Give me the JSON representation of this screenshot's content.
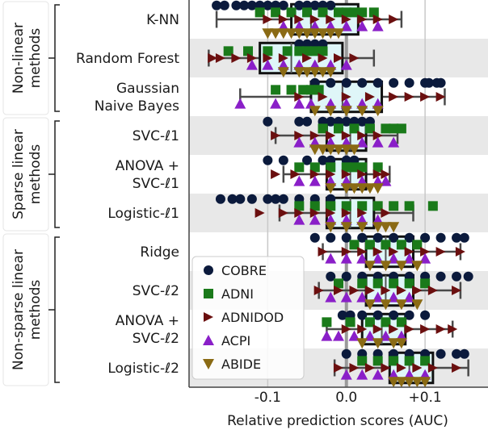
{
  "chart_data": {
    "type": "scatter",
    "xlabel": "Relative prediction scores (AUC)",
    "xlim": [
      -0.2,
      0.18
    ],
    "x_ticks": [
      {
        "value": -0.1,
        "label": "-0.1"
      },
      {
        "value": 0.0,
        "label": "0.0"
      },
      {
        "value": 0.1,
        "label": "+0.1"
      }
    ],
    "groups": [
      {
        "label": "Non-linear methods",
        "lines": [
          "Non-linear",
          "methods"
        ],
        "rows": [
          0,
          2
        ]
      },
      {
        "label": "Sparse linear methods",
        "lines": [
          "Sparse linear",
          "methods"
        ],
        "rows": [
          3,
          5
        ]
      },
      {
        "label": "Non-sparse linear methods",
        "lines": [
          "Non-sparse linear",
          "methods"
        ],
        "rows": [
          6,
          9
        ]
      }
    ],
    "methods": [
      {
        "lines": [
          "K-NN"
        ],
        "box": [
          -0.07,
          -0.045,
          0.015
        ],
        "whiskers": [
          -0.165,
          0.07
        ]
      },
      {
        "lines": [
          "Random Forest"
        ],
        "box": [
          -0.11,
          -0.07,
          -0.005
        ],
        "whiskers": [
          -0.175,
          0.035
        ]
      },
      {
        "lines": [
          "Gaussian",
          "Naive Bayes"
        ],
        "box": [
          -0.045,
          -0.005,
          0.045
        ],
        "whiskers": [
          -0.135,
          0.125
        ]
      },
      {
        "lines": [
          "SVC-ℓ1"
        ],
        "box": [
          -0.025,
          0.005,
          0.025
        ],
        "whiskers": [
          -0.09,
          0.065
        ]
      },
      {
        "lines": [
          "ANOVA +",
          "SVC-ℓ1"
        ],
        "box": [
          -0.025,
          0.005,
          0.025
        ],
        "whiskers": [
          -0.08,
          0.055
        ]
      },
      {
        "lines": [
          "Logistic-ℓ1"
        ],
        "box": [
          -0.025,
          0.005,
          0.035
        ],
        "whiskers": [
          -0.085,
          0.085
        ]
      },
      {
        "lines": [
          "Ridge"
        ],
        "box": [
          0.025,
          0.05,
          0.085
        ],
        "whiskers": [
          -0.03,
          0.145
        ]
      },
      {
        "lines": [
          "SVC-ℓ2"
        ],
        "box": [
          0.025,
          0.05,
          0.085
        ],
        "whiskers": [
          -0.035,
          0.145
        ]
      },
      {
        "lines": [
          "ANOVA +",
          "SVC-ℓ2"
        ],
        "box": [
          0.02,
          0.045,
          0.075
        ],
        "whiskers": [
          -0.025,
          0.135
        ]
      },
      {
        "lines": [
          "Logistic-ℓ2"
        ],
        "box": [
          0.055,
          0.08,
          0.11
        ],
        "whiskers": [
          -0.015,
          0.155
        ]
      }
    ],
    "series": [
      {
        "name": "COBRE",
        "marker": "circle",
        "color": "#0b1a3c",
        "x": [
          [
            -0.165,
            -0.155,
            -0.14,
            -0.13,
            -0.12,
            -0.11,
            -0.1,
            -0.09,
            -0.08,
            -0.06,
            -0.05,
            -0.04,
            -0.03,
            -0.02
          ],
          [
            -0.06,
            -0.05,
            -0.04,
            -0.03
          ],
          [
            -0.04,
            -0.02,
            0.0,
            0.02,
            0.04,
            0.06,
            0.08,
            0.1,
            0.105,
            0.115,
            0.12
          ],
          [
            -0.1,
            -0.06,
            -0.05,
            -0.03,
            -0.02,
            -0.01,
            0.0,
            0.01,
            0.02,
            0.03
          ],
          [
            -0.1,
            -0.08,
            -0.05,
            -0.03,
            -0.02,
            0.0,
            0.01
          ],
          [
            -0.16,
            -0.145,
            -0.135,
            -0.12,
            -0.1,
            -0.09,
            -0.08,
            -0.06,
            -0.04,
            -0.02
          ],
          [
            -0.04,
            -0.02,
            0.0,
            0.02,
            0.04,
            0.06,
            0.08,
            0.1,
            0.12,
            0.14,
            0.15
          ],
          [
            -0.02,
            0.0,
            0.02,
            0.04,
            0.06,
            0.08,
            0.1,
            0.12,
            0.14,
            0.155
          ],
          [
            -0.005,
            0.005,
            0.02,
            0.04,
            0.06,
            0.08,
            0.1
          ],
          [
            0.0,
            0.02,
            0.04,
            0.06,
            0.08,
            0.1,
            0.12,
            0.14,
            0.15
          ]
        ]
      },
      {
        "name": "ADNI",
        "marker": "square",
        "color": "#1a7a1a",
        "x": [
          [
            -0.11,
            -0.09,
            -0.07,
            -0.05,
            -0.03,
            -0.01,
            0.0,
            0.01,
            0.02,
            0.035
          ],
          [
            -0.15,
            -0.125,
            -0.1,
            -0.075,
            -0.06,
            -0.05,
            -0.04,
            -0.03
          ],
          [
            -0.09,
            -0.07,
            -0.055,
            -0.045,
            -0.04,
            -0.035
          ],
          [
            -0.03,
            -0.01,
            0.01,
            0.03,
            0.05,
            0.06,
            0.07
          ],
          [
            -0.06,
            -0.04,
            -0.02,
            0.0,
            0.01,
            0.02,
            0.04
          ],
          [
            -0.06,
            -0.04,
            -0.02,
            0.0,
            0.02,
            0.04,
            0.06,
            0.08,
            0.11
          ],
          [
            0.01,
            0.03,
            0.05,
            0.07,
            0.09
          ],
          [
            -0.01,
            0.02,
            0.04,
            0.06,
            0.08,
            0.1
          ],
          [
            -0.025,
            0.005,
            0.03,
            0.05,
            0.07
          ],
          [
            0.02,
            0.04,
            0.06,
            0.08,
            0.1
          ]
        ]
      },
      {
        "name": "ADNIDOD",
        "marker": "triangle-right",
        "color": "#6b0f0f",
        "x": [
          [
            -0.1,
            -0.08,
            -0.06,
            -0.04,
            -0.02,
            0.0,
            0.02,
            0.04,
            0.06
          ],
          [
            -0.17,
            -0.16,
            -0.14,
            -0.12,
            -0.1,
            -0.08,
            -0.05,
            -0.03,
            -0.01,
            0.01
          ],
          [
            -0.06,
            -0.03,
            0.0,
            0.03,
            0.06,
            0.08,
            0.1,
            0.12
          ],
          [
            -0.09,
            -0.06,
            -0.04,
            -0.02,
            0.0,
            0.02,
            0.04
          ],
          [
            -0.09,
            -0.065,
            -0.04,
            -0.02,
            0.0,
            0.02,
            0.04,
            0.05
          ],
          [
            -0.11,
            -0.08,
            -0.06,
            -0.04,
            -0.02,
            0.0,
            0.02,
            0.05
          ],
          [
            -0.03,
            0.0,
            0.02,
            0.04,
            0.06,
            0.08,
            0.1,
            0.12,
            0.145
          ],
          [
            -0.035,
            -0.01,
            0.01,
            0.03,
            0.05,
            0.07,
            0.09,
            0.11,
            0.14
          ],
          [
            0.0,
            0.02,
            0.04,
            0.06,
            0.08,
            0.1,
            0.12,
            0.135
          ],
          [
            -0.01,
            0.01,
            0.03,
            0.05,
            0.07,
            0.09,
            0.11,
            0.14
          ]
        ]
      },
      {
        "name": "ACPI",
        "marker": "triangle-up",
        "color": "#8a1fc8",
        "x": [
          [
            -0.08,
            -0.06,
            -0.04,
            -0.02,
            0.0,
            0.02,
            0.04
          ],
          [
            -0.12,
            -0.1,
            -0.08,
            -0.06,
            -0.04,
            -0.02,
            0.0
          ],
          [
            -0.135,
            -0.09,
            -0.06,
            -0.045,
            -0.02,
            0.0,
            0.02,
            0.04
          ],
          [
            -0.06,
            -0.04,
            -0.02,
            0.0,
            0.02,
            0.04,
            0.06
          ],
          [
            -0.06,
            -0.04,
            -0.02,
            0.0,
            0.02,
            0.04,
            0.05
          ],
          [
            -0.06,
            -0.04,
            -0.02,
            0.0,
            0.02,
            0.04
          ],
          [
            -0.02,
            0.0,
            0.02,
            0.04,
            0.06,
            0.08,
            0.1
          ],
          [
            -0.02,
            0.0,
            0.02,
            0.04,
            0.06,
            0.08
          ],
          [
            -0.025,
            -0.01,
            0.01,
            0.03,
            0.05,
            0.07
          ],
          [
            0.0,
            0.02,
            0.04,
            0.06,
            0.08,
            0.1
          ]
        ]
      },
      {
        "name": "ABIDE",
        "marker": "triangle-down",
        "color": "#8a6a14",
        "x": [
          [
            -0.1,
            -0.09,
            -0.08,
            -0.07,
            -0.06,
            -0.05,
            -0.04,
            -0.03,
            -0.02,
            -0.01
          ],
          [
            -0.08,
            -0.06,
            -0.05,
            -0.04,
            -0.03,
            -0.02
          ],
          [
            -0.04,
            -0.02,
            0.0,
            0.02,
            0.04
          ],
          [
            -0.04,
            -0.03,
            -0.02,
            -0.01,
            0.0,
            0.01
          ],
          [
            -0.02,
            0.0,
            0.01,
            0.02,
            0.03,
            0.04
          ],
          [
            -0.02,
            0.0,
            0.02,
            0.04,
            0.05,
            0.06
          ],
          [
            0.03,
            0.05,
            0.07,
            0.09
          ],
          [
            0.03,
            0.05,
            0.07,
            0.09
          ],
          [
            0.02,
            0.04,
            0.06,
            0.07
          ],
          [
            0.06,
            0.07,
            0.08,
            0.09,
            0.1
          ]
        ]
      }
    ],
    "grid": true,
    "legend_position": "lower-left"
  }
}
